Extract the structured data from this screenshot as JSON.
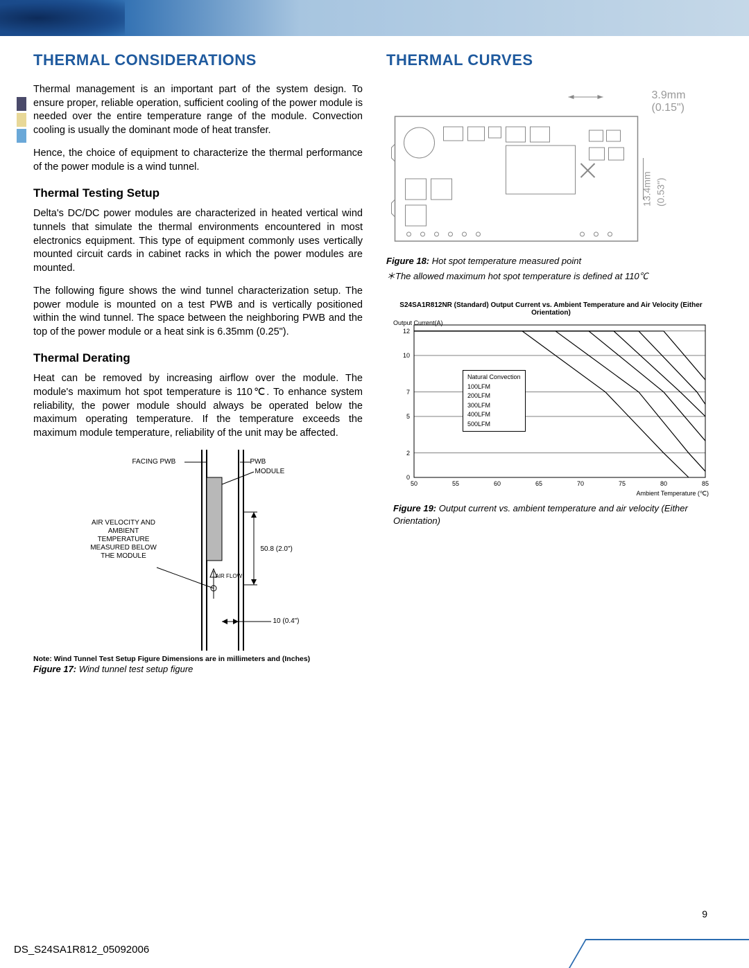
{
  "header": {
    "banner_gradient_left": "#1a4a8a",
    "banner_gradient_right": "#c5d8e8"
  },
  "left_column": {
    "section_title": "THERMAL CONSIDERATIONS",
    "intro_p1": "Thermal management is an important part of the system design. To ensure proper, reliable operation, sufficient cooling of the power module is needed over the entire temperature range of the module. Convection cooling is usually the dominant mode of heat transfer.",
    "intro_p2": "Hence, the choice of equipment to characterize the thermal performance of the power module is a wind tunnel.",
    "sub1_title": "Thermal Testing Setup",
    "sub1_p1": "Delta's DC/DC power modules are characterized in heated vertical wind tunnels that simulate the thermal environments encountered in most electronics equipment. This type of equipment commonly uses vertically mounted circuit cards in cabinet racks in which the power modules are mounted.",
    "sub1_p2": "The following figure shows the wind tunnel characterization setup. The power module is mounted on a test PWB and is vertically positioned within the wind tunnel. The space between the neighboring PWB and the top of the power module or a heat sink is 6.35mm (0.25\").",
    "sub2_title": "Thermal Derating",
    "sub2_p1": "Heat can be removed by increasing airflow over the module. The module's maximum hot spot temperature is 110℃. To enhance system reliability, the power module should always be operated below the maximum operating temperature. If the temperature exceeds the maximum module temperature, reliability of the unit may be affected.",
    "wind_tunnel": {
      "label_facing_pwb": "FACING PWB",
      "label_pwb": "PWB",
      "label_module": "MODULE",
      "label_air_measured": "AIR VELOCITY AND AMBIENT TEMPERATURE MEASURED BELOW THE MODULE",
      "label_airflow": "AIR FLOW",
      "dim_height": "50.8 (2.0\")",
      "dim_gap": "10 (0.4\")"
    },
    "note": "Note: Wind Tunnel Test Setup Figure Dimensions are in millimeters and (Inches)",
    "fig17_label": "Figure 17:",
    "fig17_caption": " Wind tunnel test setup figure"
  },
  "right_column": {
    "section_title": "THERMAL CURVES",
    "pcb": {
      "dim_w": "3.9mm",
      "dim_w_in": "(0.15\")",
      "dim_h": "13.4mm",
      "dim_h_in": "(0.53\")"
    },
    "fig18_label": "Figure 18:",
    "fig18_caption": " Hot spot temperature measured point",
    "fig18_note": "＊The allowed maximum hot spot temperature is defined at 110℃",
    "chart": {
      "title": "S24SA1R812NR (Standard) Output Current vs. Ambient Temperature and Air Velocity (Either Orientation)",
      "ylabel": "Output Current(A)",
      "xlabel": "Ambient Temperature (℃)",
      "y_ticks": [
        0,
        2,
        5,
        7,
        10,
        12
      ],
      "x_ticks": [
        50,
        55,
        60,
        65,
        70,
        75,
        80,
        85
      ],
      "xlim": [
        50,
        85
      ],
      "ylim": [
        0,
        12.5
      ],
      "legend": [
        "Natural Convection",
        "100LFM",
        "200LFM",
        "300LFM",
        "400LFM",
        "500LFM"
      ],
      "series": {
        "natural": [
          [
            50,
            12
          ],
          [
            63,
            12
          ],
          [
            73,
            7
          ],
          [
            80,
            2
          ],
          [
            83,
            0
          ]
        ],
        "100lfm": [
          [
            50,
            12
          ],
          [
            67,
            12
          ],
          [
            77,
            7
          ],
          [
            83,
            2
          ],
          [
            85,
            0.5
          ]
        ],
        "200lfm": [
          [
            50,
            12
          ],
          [
            71,
            12
          ],
          [
            80,
            7
          ],
          [
            85,
            3
          ]
        ],
        "300lfm": [
          [
            50,
            12
          ],
          [
            74,
            12
          ],
          [
            82,
            7
          ],
          [
            85,
            5
          ]
        ],
        "400lfm": [
          [
            50,
            12
          ],
          [
            77,
            12
          ],
          [
            84,
            7
          ],
          [
            85,
            6
          ]
        ],
        "500lfm": [
          [
            50,
            12
          ],
          [
            80,
            12
          ],
          [
            85,
            8
          ]
        ]
      },
      "line_color": "#000000",
      "grid_color": "#000000",
      "background_color": "#ffffff"
    },
    "fig19_label": "Figure 19:",
    "fig19_caption": " Output current vs. ambient temperature and air velocity (Either Orientation)"
  },
  "side_tabs": {
    "colors": [
      "#4a4a6a",
      "#e8d898",
      "#6aa8d8"
    ]
  },
  "footer": {
    "doc_id": "DS_S24SA1R812_05092006",
    "page_number": "9"
  },
  "accent_color": "#1f5a9e"
}
